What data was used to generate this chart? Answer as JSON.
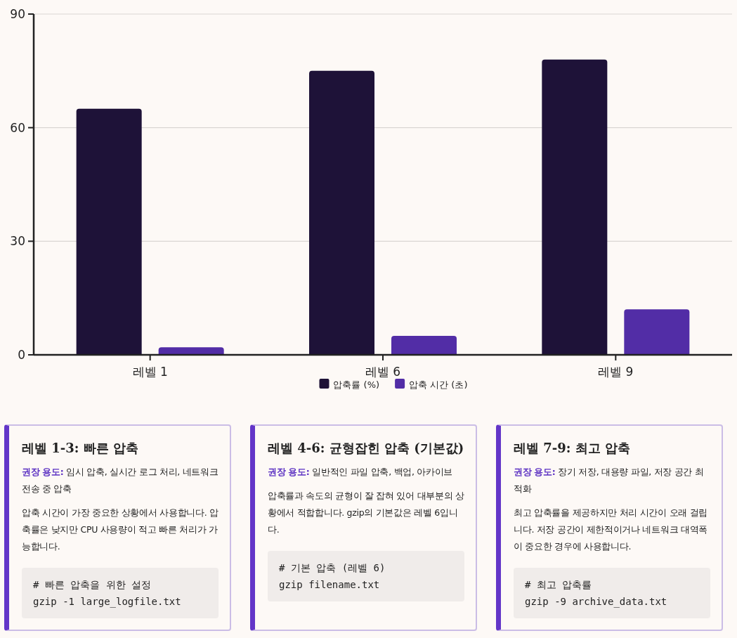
{
  "chart_data": [
    {
      "type": "bar",
      "categories": [
        "레벨 1",
        "레벨 6",
        "레벨 9"
      ],
      "series": [
        {
          "name": "압축률 (%)",
          "color": "#1e1238",
          "values": [
            65,
            75,
            78
          ]
        },
        {
          "name": "압축 시간 (초)",
          "color": "#522da6",
          "values": [
            2,
            5,
            12
          ]
        }
      ],
      "ylim": [
        0,
        90
      ],
      "yticks": [
        0,
        30,
        60,
        90
      ],
      "grid": "y",
      "legend": "bottom"
    },
    {
      "type": "other",
      "title": "레벨 1-3: 빠른 압축",
      "annotations": [
        "**권장 용도:** 임시 압축, 실시간 로그 처리, 네트워크 전송 중 압축",
        "압축 시간이 가장 중요한 상황에서 사용합니다. 압축률은 낮지만 CPU 사용량이 적고 빠른 처리가 가능합니다.",
        "# 빠른 압축을 위한 설정",
        "gzip -1 large_logfile.txt"
      ]
    },
    {
      "type": "other",
      "title": "레벨 4-6: 균형잡힌 압축 (기본값)",
      "annotations": [
        "**권장 용도:** 일반적인 파일 압축, 백업, 아카이브",
        "압축률과 속도의 균형이 잘 잡혀 있어 대부분의 상황에서 적합합니다. gzip의 기본값은 레벨 6입니다.",
        "# 기본 압축 (레벨 6)",
        "gzip filename.txt"
      ]
    },
    {
      "type": "other",
      "title": "레벨 7-9: 최고 압축",
      "annotations": [
        "**권장 용도:** 장기 저장, 대용량 파일, 저장 공간 최적화",
        "최고 압축률을 제공하지만 처리 시간이 오래 걸립니다. 저장 공간이 제한적이거나 네트워크 대역폭이 중요한 경우에 사용합니다.",
        "# 최고 압축률",
        "gzip -9 archive_data.txt"
      ]
    }
  ]
}
